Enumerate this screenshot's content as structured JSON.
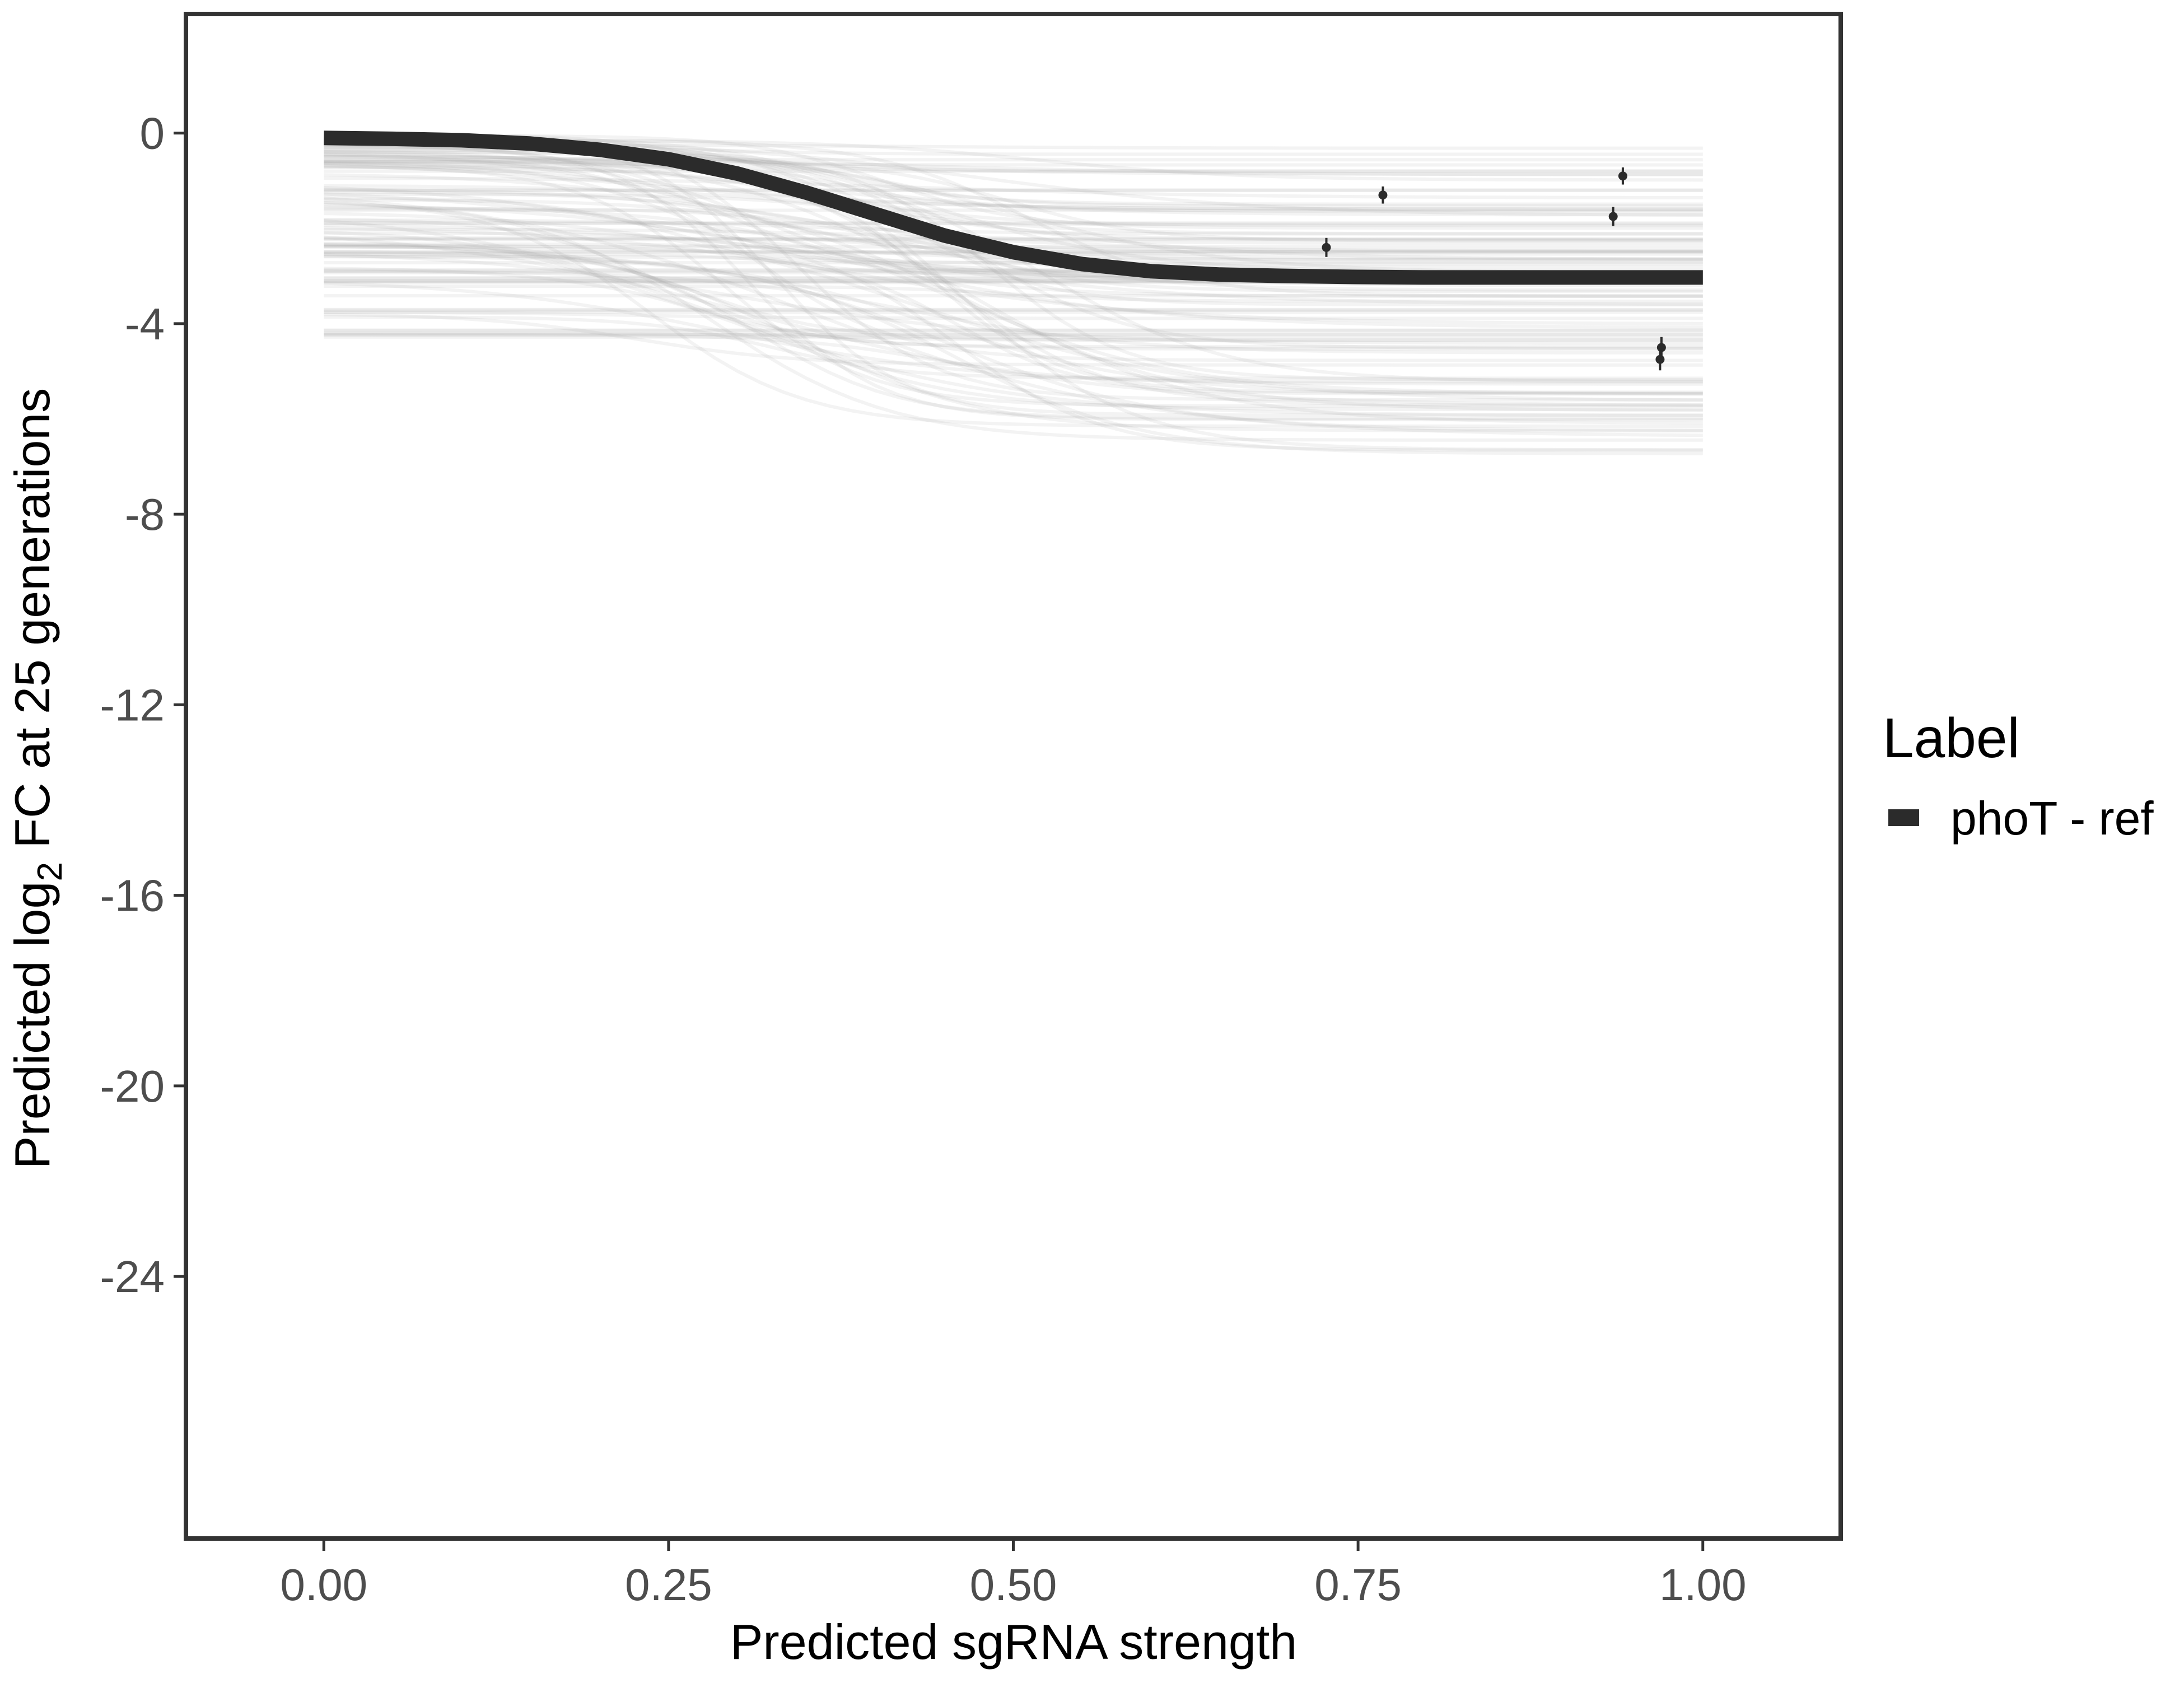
{
  "chart_data": {
    "type": "line",
    "xlabel": "Predicted sgRNA strength",
    "ylabel_prefix": "Predicted  log",
    "ylabel_subscript": "2",
    "ylabel_suffix": " FC at 25 generations",
    "xlim": [
      -0.1,
      1.1
    ],
    "ylim": [
      -29.5,
      2.5
    ],
    "x_ticks": [
      0.0,
      0.25,
      0.5,
      0.75,
      1.0
    ],
    "x_tick_labels": [
      "0.00",
      "0.25",
      "0.50",
      "0.75",
      "1.00"
    ],
    "y_ticks": [
      0,
      -4,
      -8,
      -12,
      -16,
      -20,
      -24
    ],
    "y_tick_labels": [
      "0",
      "-4",
      "-8",
      "-12",
      "-16",
      "-20",
      "-24"
    ],
    "grid": false,
    "legend": {
      "title": "Label",
      "placement": "right",
      "entries": [
        {
          "name": "phoT - ref",
          "color": "#2b2b2b"
        }
      ]
    },
    "series": [
      {
        "name": "phoT - ref",
        "color": "#2b2b2b",
        "x": [
          0.0,
          0.05,
          0.1,
          0.15,
          0.2,
          0.25,
          0.3,
          0.35,
          0.4,
          0.45,
          0.5,
          0.55,
          0.6,
          0.65,
          0.7,
          0.75,
          0.8,
          0.85,
          0.9,
          0.95,
          1.0
        ],
        "y": [
          -0.1,
          -0.12,
          -0.15,
          -0.22,
          -0.35,
          -0.55,
          -0.85,
          -1.25,
          -1.7,
          -2.15,
          -2.5,
          -2.75,
          -2.9,
          -2.97,
          -3.0,
          -3.02,
          -3.03,
          -3.03,
          -3.03,
          -3.03,
          -3.03
        ]
      }
    ],
    "posterior_draws": {
      "description_count": 120,
      "color": "#9e9e9e",
      "y_at_x0_range": [
        -4.4,
        0.0
      ],
      "y_at_x1_range": [
        -6.8,
        -0.3
      ]
    },
    "observed_points": [
      {
        "x": 0.727,
        "y": -2.4,
        "y_low": -2.6,
        "y_high": -2.2
      },
      {
        "x": 0.768,
        "y": -1.3,
        "y_low": -1.48,
        "y_high": -1.12
      },
      {
        "x": 0.935,
        "y": -1.75,
        "y_low": -1.95,
        "y_high": -1.55
      },
      {
        "x": 0.942,
        "y": -0.9,
        "y_low": -1.08,
        "y_high": -0.72
      },
      {
        "x": 0.97,
        "y": -4.5,
        "y_low": -4.72,
        "y_high": -4.28
      },
      {
        "x": 0.969,
        "y": -4.75,
        "y_low": -4.98,
        "y_high": -4.52
      }
    ]
  }
}
